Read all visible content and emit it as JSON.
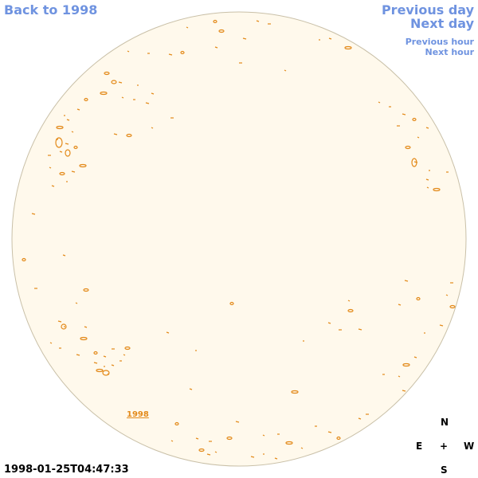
{
  "nav": {
    "back": "Back to 1998",
    "previous_day": "Previous day",
    "next_day": "Next day",
    "previous_hour": "Previous hour",
    "next_hour": "Next hour"
  },
  "disk": {
    "year_link": "1998"
  },
  "compass": {
    "north": "N",
    "east": "E",
    "center": "+",
    "west": "W",
    "south": "S"
  },
  "timestamp": "1998-01-25T04:47:33",
  "colors": {
    "link": "#6f93e0",
    "disk_fill": "#fff9ec",
    "disk_edge": "#c9c0a8",
    "contour": "#e38a1a"
  }
}
